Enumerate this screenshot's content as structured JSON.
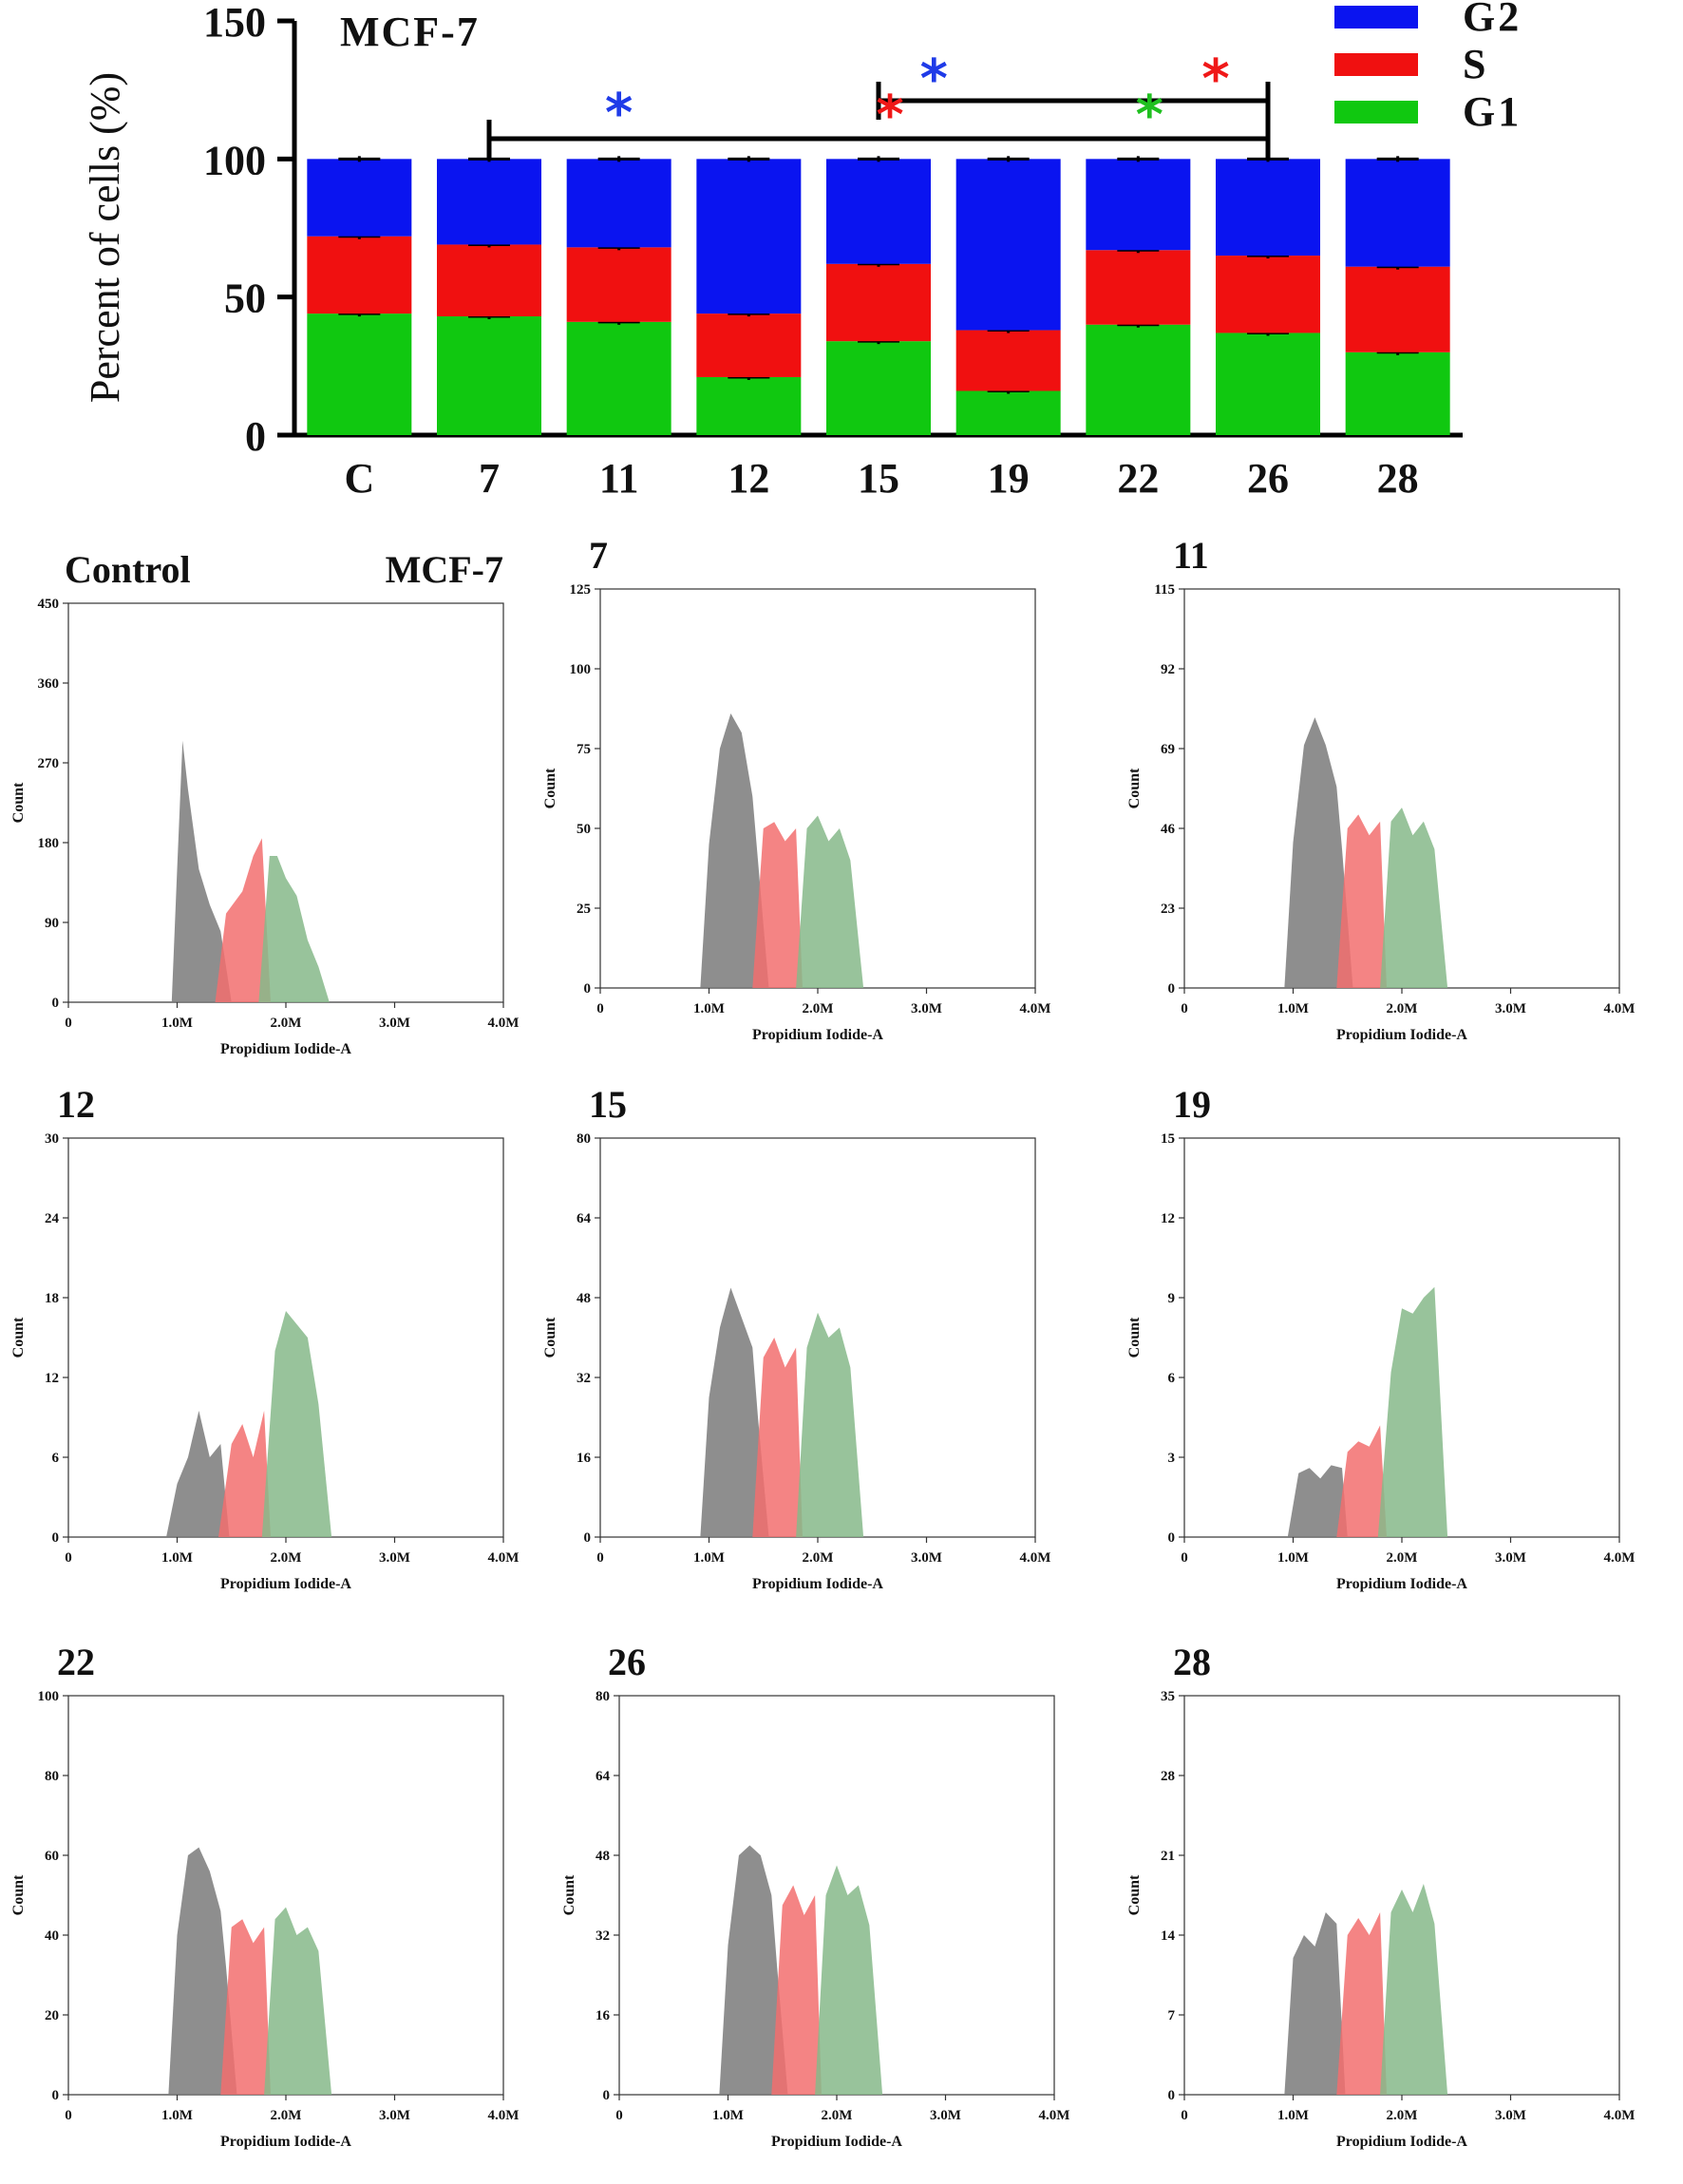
{
  "figure_label": "MCF-7",
  "colors": {
    "G2": "#0a14f0",
    "S": "#f01010",
    "G1": "#10c810",
    "hist_G1": "#7a7a7a",
    "hist_S": "#f26f6f",
    "hist_G2": "#86b98a",
    "sig_blue": "#1f3be8",
    "sig_red": "#f01818",
    "sig_green": "#20c020"
  },
  "chart_data": [
    {
      "type": "bar",
      "stacked": true,
      "title": "MCF-7",
      "ylabel": "Percent of cells (%)",
      "xlabel": "",
      "ylim": [
        0,
        150
      ],
      "yticks": [
        "0",
        "50",
        "100",
        "150"
      ],
      "categories": [
        "C",
        "7",
        "11",
        "12",
        "15",
        "19",
        "22",
        "26",
        "28"
      ],
      "series": [
        {
          "name": "G1",
          "values": [
            44,
            43,
            41,
            21,
            34,
            16,
            40,
            37,
            30
          ]
        },
        {
          "name": "S",
          "values": [
            28,
            26,
            27,
            23,
            28,
            22,
            27,
            28,
            31
          ]
        },
        {
          "name": "G2",
          "values": [
            28,
            31,
            32,
            56,
            38,
            62,
            33,
            35,
            39
          ]
        }
      ],
      "legend": [
        "G2",
        "S",
        "G1"
      ],
      "legend_position": "top-right",
      "significance": {
        "brackets": [
          {
            "from": "7",
            "to": "26"
          },
          {
            "from": "15",
            "to": "26"
          }
        ],
        "marks": [
          {
            "symbol": "*",
            "series": "G2",
            "at": "11"
          },
          {
            "symbol": "*",
            "series": "S",
            "at": "15"
          },
          {
            "symbol": "*",
            "series": "G2",
            "at": "15-19"
          },
          {
            "symbol": "*",
            "series": "G1",
            "at": "22"
          },
          {
            "symbol": "*",
            "series": "S",
            "at": "26"
          }
        ]
      }
    },
    {
      "type": "area",
      "title": "Control",
      "tag": "MCF-7",
      "ylabel": "Count",
      "xlabel": "Propidium Iodide-A",
      "yticks": [
        "0",
        "90",
        "180",
        "270",
        "360",
        "450"
      ],
      "xticks": [
        "0",
        "1.0M",
        "2.0M",
        "3.0M",
        "4.0M"
      ],
      "ylim": [
        0,
        450
      ],
      "xlim": [
        0,
        4
      ],
      "series": [
        {
          "name": "G1",
          "x": [
            0.95,
            1.0,
            1.05,
            1.1,
            1.2,
            1.3,
            1.4,
            1.5
          ],
          "y": [
            0,
            150,
            295,
            240,
            150,
            110,
            80,
            0
          ]
        },
        {
          "name": "S",
          "x": [
            1.35,
            1.45,
            1.6,
            1.7,
            1.78,
            1.86
          ],
          "y": [
            0,
            100,
            125,
            165,
            185,
            0
          ]
        },
        {
          "name": "G2",
          "x": [
            1.75,
            1.85,
            1.92,
            2.0,
            2.1,
            2.2,
            2.3,
            2.4
          ],
          "y": [
            0,
            165,
            165,
            140,
            120,
            70,
            40,
            0
          ]
        }
      ]
    },
    {
      "type": "area",
      "title": "7",
      "ylabel": "Count",
      "xlabel": "Propidium Iodide-A",
      "yticks": [
        "0",
        "25",
        "50",
        "75",
        "100",
        "125"
      ],
      "xticks": [
        "0",
        "1.0M",
        "2.0M",
        "3.0M",
        "4.0M"
      ],
      "ylim": [
        0,
        125
      ],
      "xlim": [
        0,
        4
      ],
      "series": [
        {
          "name": "G1",
          "x": [
            0.92,
            1.0,
            1.1,
            1.2,
            1.3,
            1.4,
            1.45,
            1.55
          ],
          "y": [
            0,
            45,
            75,
            86,
            80,
            60,
            40,
            0
          ]
        },
        {
          "name": "S",
          "x": [
            1.4,
            1.5,
            1.6,
            1.7,
            1.8,
            1.86
          ],
          "y": [
            0,
            50,
            52,
            46,
            50,
            0
          ]
        },
        {
          "name": "G2",
          "x": [
            1.8,
            1.9,
            2.0,
            2.1,
            2.2,
            2.3,
            2.42
          ],
          "y": [
            0,
            50,
            54,
            46,
            50,
            40,
            0
          ]
        }
      ]
    },
    {
      "type": "area",
      "title": "11",
      "ylabel": "Count",
      "xlabel": "Propidium Iodide-A",
      "yticks": [
        "0",
        "23",
        "46",
        "69",
        "92",
        "115"
      ],
      "xticks": [
        "0",
        "1.0M",
        "2.0M",
        "3.0M",
        "4.0M"
      ],
      "ylim": [
        0,
        115
      ],
      "xlim": [
        0,
        4
      ],
      "series": [
        {
          "name": "G1",
          "x": [
            0.92,
            1.0,
            1.1,
            1.2,
            1.3,
            1.4,
            1.45,
            1.55
          ],
          "y": [
            0,
            42,
            70,
            78,
            70,
            58,
            40,
            0
          ]
        },
        {
          "name": "S",
          "x": [
            1.4,
            1.5,
            1.6,
            1.7,
            1.8,
            1.86
          ],
          "y": [
            0,
            46,
            50,
            44,
            48,
            0
          ]
        },
        {
          "name": "G2",
          "x": [
            1.8,
            1.9,
            2.0,
            2.1,
            2.2,
            2.3,
            2.42
          ],
          "y": [
            0,
            48,
            52,
            44,
            48,
            40,
            0
          ]
        }
      ]
    },
    {
      "type": "area",
      "title": "12",
      "ylabel": "Count",
      "xlabel": "Propidium Iodide-A",
      "yticks": [
        "0",
        "6",
        "12",
        "18",
        "24",
        "30"
      ],
      "xticks": [
        "0",
        "1.0M",
        "2.0M",
        "3.0M",
        "4.0M"
      ],
      "ylim": [
        0,
        30
      ],
      "xlim": [
        0,
        4
      ],
      "series": [
        {
          "name": "G1",
          "x": [
            0.9,
            1.0,
            1.1,
            1.2,
            1.3,
            1.4,
            1.48
          ],
          "y": [
            0,
            4,
            6,
            9.5,
            6,
            7,
            0
          ]
        },
        {
          "name": "S",
          "x": [
            1.38,
            1.5,
            1.6,
            1.7,
            1.8,
            1.86
          ],
          "y": [
            0,
            7,
            8.5,
            6,
            9.5,
            0
          ]
        },
        {
          "name": "G2",
          "x": [
            1.78,
            1.9,
            2.0,
            2.1,
            2.2,
            2.3,
            2.42
          ],
          "y": [
            0,
            14,
            17,
            16,
            15,
            10,
            0
          ]
        }
      ]
    },
    {
      "type": "area",
      "title": "15",
      "ylabel": "Count",
      "xlabel": "Propidium Iodide-A",
      "yticks": [
        "0",
        "16",
        "32",
        "48",
        "64",
        "80"
      ],
      "xticks": [
        "0",
        "1.0M",
        "2.0M",
        "3.0M",
        "4.0M"
      ],
      "ylim": [
        0,
        80
      ],
      "xlim": [
        0,
        4
      ],
      "series": [
        {
          "name": "G1",
          "x": [
            0.92,
            1.0,
            1.1,
            1.2,
            1.3,
            1.4,
            1.45,
            1.55
          ],
          "y": [
            0,
            28,
            42,
            50,
            44,
            38,
            24,
            0
          ]
        },
        {
          "name": "S",
          "x": [
            1.4,
            1.5,
            1.6,
            1.7,
            1.8,
            1.86
          ],
          "y": [
            0,
            36,
            40,
            34,
            38,
            0
          ]
        },
        {
          "name": "G2",
          "x": [
            1.8,
            1.9,
            2.0,
            2.1,
            2.2,
            2.3,
            2.42
          ],
          "y": [
            0,
            38,
            45,
            40,
            42,
            34,
            0
          ]
        }
      ]
    },
    {
      "type": "area",
      "title": "19",
      "ylabel": "Count",
      "xlabel": "Propidium Iodide-A",
      "yticks": [
        "0",
        "3",
        "6",
        "9",
        "12",
        "15"
      ],
      "xticks": [
        "0",
        "1.0M",
        "2.0M",
        "3.0M",
        "4.0M"
      ],
      "ylim": [
        0,
        15
      ],
      "xlim": [
        0,
        4
      ],
      "series": [
        {
          "name": "G1",
          "x": [
            0.95,
            1.05,
            1.15,
            1.25,
            1.35,
            1.45,
            1.5
          ],
          "y": [
            0,
            2.4,
            2.6,
            2.2,
            2.7,
            2.6,
            0
          ]
        },
        {
          "name": "S",
          "x": [
            1.4,
            1.5,
            1.6,
            1.7,
            1.8,
            1.86
          ],
          "y": [
            0,
            3.2,
            3.6,
            3.4,
            4.2,
            0
          ]
        },
        {
          "name": "G2",
          "x": [
            1.78,
            1.9,
            2.0,
            2.1,
            2.2,
            2.3,
            2.42
          ],
          "y": [
            0,
            6.2,
            8.6,
            8.4,
            9,
            9.4,
            0
          ]
        }
      ]
    },
    {
      "type": "area",
      "title": "22",
      "ylabel": "Count",
      "xlabel": "Propidium Iodide-A",
      "yticks": [
        "0",
        "20",
        "40",
        "60",
        "80",
        "100"
      ],
      "xticks": [
        "0",
        "1.0M",
        "2.0M",
        "3.0M",
        "4.0M"
      ],
      "ylim": [
        0,
        100
      ],
      "xlim": [
        0,
        4
      ],
      "series": [
        {
          "name": "G1",
          "x": [
            0.92,
            1.0,
            1.1,
            1.2,
            1.3,
            1.4,
            1.45,
            1.55
          ],
          "y": [
            0,
            40,
            60,
            62,
            56,
            46,
            32,
            0
          ]
        },
        {
          "name": "S",
          "x": [
            1.4,
            1.5,
            1.6,
            1.7,
            1.8,
            1.86
          ],
          "y": [
            0,
            42,
            44,
            38,
            42,
            0
          ]
        },
        {
          "name": "G2",
          "x": [
            1.8,
            1.9,
            2.0,
            2.1,
            2.2,
            2.3,
            2.42
          ],
          "y": [
            0,
            44,
            47,
            40,
            42,
            36,
            0
          ]
        }
      ]
    },
    {
      "type": "area",
      "title": "26",
      "ylabel": "Count",
      "xlabel": "Propidium Iodide-A",
      "yticks": [
        "0",
        "16",
        "32",
        "48",
        "64",
        "80"
      ],
      "xticks": [
        "0",
        "1.0M",
        "2.0M",
        "3.0M",
        "4.0M"
      ],
      "ylim": [
        0,
        80
      ],
      "xlim": [
        0,
        4
      ],
      "series": [
        {
          "name": "G1",
          "x": [
            0.92,
            1.0,
            1.1,
            1.2,
            1.3,
            1.4,
            1.45,
            1.55
          ],
          "y": [
            0,
            30,
            48,
            50,
            48,
            40,
            26,
            0
          ]
        },
        {
          "name": "S",
          "x": [
            1.4,
            1.5,
            1.6,
            1.7,
            1.8,
            1.86
          ],
          "y": [
            0,
            38,
            42,
            36,
            40,
            0
          ]
        },
        {
          "name": "G2",
          "x": [
            1.8,
            1.9,
            2.0,
            2.1,
            2.2,
            2.3,
            2.42
          ],
          "y": [
            0,
            40,
            46,
            40,
            42,
            34,
            0
          ]
        }
      ]
    },
    {
      "type": "area",
      "title": "28",
      "ylabel": "Count",
      "xlabel": "Propidium Iodide-A",
      "yticks": [
        "0",
        "7",
        "14",
        "21",
        "28",
        "35"
      ],
      "xticks": [
        "0",
        "1.0M",
        "2.0M",
        "3.0M",
        "4.0M"
      ],
      "ylim": [
        0,
        35
      ],
      "xlim": [
        0,
        4
      ],
      "series": [
        {
          "name": "G1",
          "x": [
            0.92,
            1.0,
            1.1,
            1.2,
            1.3,
            1.4,
            1.48
          ],
          "y": [
            0,
            12,
            14,
            13,
            16,
            15,
            0
          ]
        },
        {
          "name": "S",
          "x": [
            1.4,
            1.5,
            1.6,
            1.7,
            1.8,
            1.86
          ],
          "y": [
            0,
            14,
            15.5,
            14,
            16,
            0
          ]
        },
        {
          "name": "G2",
          "x": [
            1.8,
            1.9,
            2.0,
            2.1,
            2.2,
            2.3,
            2.42
          ],
          "y": [
            0,
            16,
            18,
            16,
            18.5,
            15,
            0
          ]
        }
      ]
    }
  ]
}
